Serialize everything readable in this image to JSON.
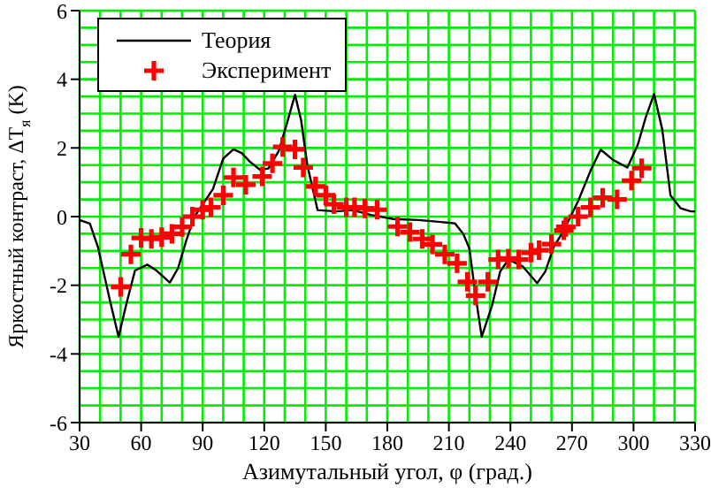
{
  "chart_data": {
    "type": "line",
    "xlabel": "Азимутальный угол, φ (град.)",
    "ylabel": "Яркостный контраст, ΔT$_{я}$  (K)",
    "xlim": [
      30,
      330
    ],
    "xticks": [
      30,
      60,
      90,
      120,
      150,
      180,
      210,
      240,
      270,
      300,
      330
    ],
    "ylim": [
      -6,
      6
    ],
    "yticks": [
      -6,
      -4,
      -2,
      0,
      2,
      4,
      6
    ],
    "grid": true,
    "legend": "top left",
    "series": [
      {
        "name": "Теория",
        "color": "#000000",
        "marker": "none",
        "line_style": "solid",
        "x": [
          30,
          35,
          39,
          45,
          49,
          53,
          57,
          63,
          67,
          74,
          78,
          82,
          86,
          95,
          100,
          105,
          109,
          113,
          118,
          122,
          127,
          131,
          135,
          138,
          141,
          146,
          155,
          163,
          172,
          183,
          195,
          205,
          213,
          217,
          220,
          223,
          226,
          231,
          235,
          239,
          246,
          253,
          257,
          261,
          266,
          273,
          279,
          284,
          290,
          297,
          302,
          306,
          310,
          314,
          318,
          323,
          328,
          330
        ],
        "values": [
          -0.1,
          -0.2,
          -0.9,
          -2.5,
          -3.5,
          -2.5,
          -1.57,
          -1.4,
          -1.55,
          -1.92,
          -1.5,
          -0.7,
          0,
          0.8,
          1.69,
          1.96,
          1.85,
          1.6,
          1.36,
          1.4,
          1.9,
          2.7,
          3.55,
          2.8,
          1.5,
          0.19,
          0.15,
          0.19,
          0.05,
          -0.07,
          -0.1,
          -0.15,
          -0.2,
          -0.5,
          -0.93,
          -2.3,
          -3.5,
          -2.6,
          -1.6,
          -1.25,
          -1.45,
          -1.94,
          -1.6,
          -0.9,
          -0.4,
          0.45,
          1.33,
          1.95,
          1.65,
          1.43,
          2.08,
          2.9,
          3.57,
          2.54,
          0.62,
          0.24,
          0.15,
          0.15
        ]
      },
      {
        "name": "Эксперимент",
        "type": "scatter",
        "color": "#ff0000",
        "marker": "cross",
        "x": [
          50,
          55,
          60,
          65,
          70,
          75,
          80,
          85,
          90,
          94,
          100,
          105,
          111,
          119,
          124,
          129,
          135,
          139,
          145,
          150,
          154,
          160,
          164,
          169,
          175,
          185,
          191,
          197,
          202,
          208,
          214,
          219,
          223,
          229,
          234,
          239,
          244,
          250,
          254,
          260,
          266,
          267,
          273,
          279,
          285,
          292,
          299,
          304
        ],
        "values": [
          -2.05,
          -1.1,
          -0.62,
          -0.65,
          -0.6,
          -0.5,
          -0.3,
          0,
          0.2,
          0.27,
          0.62,
          1.14,
          0.93,
          1.17,
          1.55,
          2.03,
          1.96,
          1.43,
          0.88,
          0.62,
          0.36,
          0.27,
          0.27,
          0.24,
          0.2,
          -0.29,
          -0.45,
          -0.65,
          -0.81,
          -1.1,
          -1.36,
          -1.9,
          -2.3,
          -1.9,
          -1.25,
          -1.22,
          -1.25,
          -1.05,
          -0.98,
          -0.8,
          -0.4,
          -0.3,
          0,
          0.27,
          0.55,
          0.5,
          1.05,
          1.41
        ]
      }
    ]
  }
}
